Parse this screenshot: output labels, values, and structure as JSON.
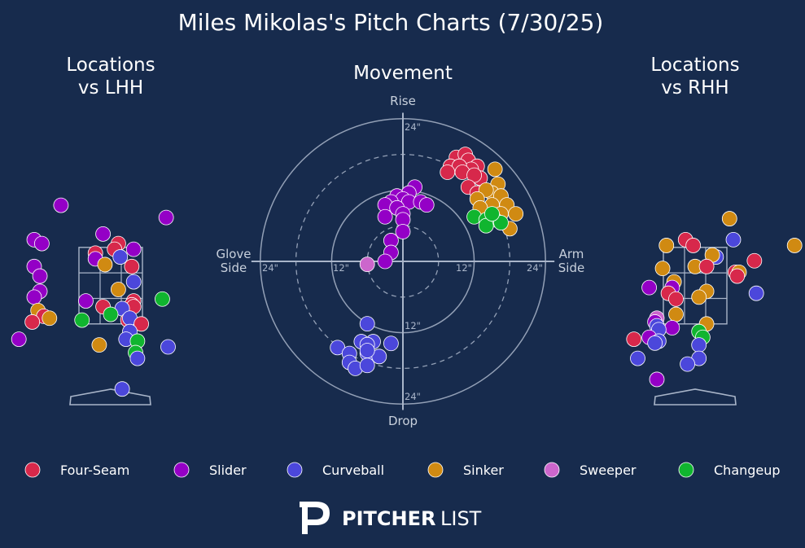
{
  "title": "Miles Mikolas's Pitch Charts (7/30/25)",
  "panels": {
    "lhh_title_line1": "Locations",
    "lhh_title_line2": "vs LHH",
    "movement_title": "Movement",
    "rhh_title_line1": "Locations",
    "rhh_title_line2": "vs RHH"
  },
  "movement_axis_labels": {
    "top": "Rise",
    "bottom": "Drop",
    "left_line1": "Glove",
    "left_line2": "Side",
    "right_line1": "Arm",
    "right_line2": "Side"
  },
  "ring_labels": {
    "top_outer": "24\"",
    "bottom_outer": "24\"",
    "left_outer": "24\"",
    "right_outer": "24\"",
    "left_inner": "12\"",
    "right_inner": "12\"",
    "bottom_inner": "12\""
  },
  "colors": {
    "background": "#172b4d",
    "grid": "#a9b5c9",
    "Four-Seam": "#d7284b",
    "Slider": "#9400c6",
    "Curveball": "#4b47db",
    "Sinker": "#d08a12",
    "Sweeper": "#cc66cc",
    "Changeup": "#10b52f"
  },
  "legend": [
    {
      "label": "Four-Seam",
      "color": "#d7284b"
    },
    {
      "label": "Slider",
      "color": "#9400c6"
    },
    {
      "label": "Curveball",
      "color": "#4b47db"
    },
    {
      "label": "Sinker",
      "color": "#d08a12"
    },
    {
      "label": "Sweeper",
      "color": "#cc66cc"
    },
    {
      "label": "Changeup",
      "color": "#10b52f"
    }
  ],
  "logo": {
    "brand_bold": "PITCHER",
    "brand_light": "LIST"
  },
  "chart_data": [
    {
      "type": "scatter",
      "name": "Locations vs LHH",
      "xlim": [
        -2.75,
        2.75
      ],
      "ylim": [
        -1.1,
        5.1
      ],
      "strike_zone": {
        "x": [
          -0.83,
          0.83
        ],
        "z": [
          1.5,
          3.5
        ]
      },
      "points": [
        {
          "x": -1.3,
          "z": 4.6,
          "pitch": "Slider"
        },
        {
          "x": 1.45,
          "z": 4.28,
          "pitch": "Slider"
        },
        {
          "x": -2.0,
          "z": 3.7,
          "pitch": "Slider"
        },
        {
          "x": -1.8,
          "z": 3.6,
          "pitch": "Slider"
        },
        {
          "x": -0.2,
          "z": 3.85,
          "pitch": "Slider"
        },
        {
          "x": 0.2,
          "z": 3.6,
          "pitch": "Four-Seam"
        },
        {
          "x": 0.1,
          "z": 3.45,
          "pitch": "Four-Seam"
        },
        {
          "x": 0.6,
          "z": 3.45,
          "pitch": "Slider"
        },
        {
          "x": -0.4,
          "z": 3.35,
          "pitch": "Four-Seam"
        },
        {
          "x": -0.4,
          "z": 3.2,
          "pitch": "Slider"
        },
        {
          "x": -0.15,
          "z": 3.05,
          "pitch": "Sinker"
        },
        {
          "x": 0.25,
          "z": 3.25,
          "pitch": "Curveball"
        },
        {
          "x": 0.55,
          "z": 3.0,
          "pitch": "Four-Seam"
        },
        {
          "x": -2.0,
          "z": 3.0,
          "pitch": "Slider"
        },
        {
          "x": -1.85,
          "z": 2.75,
          "pitch": "Slider"
        },
        {
          "x": 0.6,
          "z": 2.6,
          "pitch": "Curveball"
        },
        {
          "x": 0.2,
          "z": 2.4,
          "pitch": "Sinker"
        },
        {
          "x": -1.85,
          "z": 2.35,
          "pitch": "Slider"
        },
        {
          "x": -2.0,
          "z": 2.2,
          "pitch": "Slider"
        },
        {
          "x": -0.65,
          "z": 2.1,
          "pitch": "Slider"
        },
        {
          "x": 0.6,
          "z": 2.1,
          "pitch": "Four-Seam"
        },
        {
          "x": 0.55,
          "z": 2.0,
          "pitch": "Four-Seam"
        },
        {
          "x": 1.35,
          "z": 2.15,
          "pitch": "Changeup"
        },
        {
          "x": -0.2,
          "z": 1.95,
          "pitch": "Four-Seam"
        },
        {
          "x": 0.6,
          "z": 1.95,
          "pitch": "Four-Seam"
        },
        {
          "x": 0.3,
          "z": 1.9,
          "pitch": "Curveball"
        },
        {
          "x": -1.9,
          "z": 1.85,
          "pitch": "Sinker"
        },
        {
          "x": -1.75,
          "z": 1.7,
          "pitch": "Four-Seam"
        },
        {
          "x": -1.6,
          "z": 1.65,
          "pitch": "Sinker"
        },
        {
          "x": 0.0,
          "z": 1.75,
          "pitch": "Changeup"
        },
        {
          "x": 0.45,
          "z": 1.6,
          "pitch": "Four-Seam"
        },
        {
          "x": 0.5,
          "z": 1.65,
          "pitch": "Curveball"
        },
        {
          "x": -0.75,
          "z": 1.6,
          "pitch": "Changeup"
        },
        {
          "x": -2.05,
          "z": 1.55,
          "pitch": "Four-Seam"
        },
        {
          "x": 0.8,
          "z": 1.5,
          "pitch": "Four-Seam"
        },
        {
          "x": 0.5,
          "z": 1.3,
          "pitch": "Curveball"
        },
        {
          "x": -2.4,
          "z": 1.1,
          "pitch": "Slider"
        },
        {
          "x": 0.4,
          "z": 1.1,
          "pitch": "Curveball"
        },
        {
          "x": 0.7,
          "z": 1.05,
          "pitch": "Changeup"
        },
        {
          "x": -0.3,
          "z": 0.95,
          "pitch": "Sinker"
        },
        {
          "x": 1.5,
          "z": 0.9,
          "pitch": "Curveball"
        },
        {
          "x": 0.65,
          "z": 0.75,
          "pitch": "Changeup"
        },
        {
          "x": 0.7,
          "z": 0.6,
          "pitch": "Curveball"
        },
        {
          "x": 0.3,
          "z": -0.2,
          "pitch": "Curveball"
        }
      ]
    },
    {
      "type": "scatter",
      "name": "Movement",
      "xlim": [
        -28,
        28
      ],
      "ylim": [
        -28,
        28
      ],
      "rings": [
        6,
        12,
        18,
        24
      ],
      "points": [
        {
          "x": 9.0,
          "y": 17.5,
          "pitch": "Four-Seam"
        },
        {
          "x": 10.5,
          "y": 18.0,
          "pitch": "Four-Seam"
        },
        {
          "x": 11.0,
          "y": 17.0,
          "pitch": "Four-Seam"
        },
        {
          "x": 12.5,
          "y": 16.0,
          "pitch": "Four-Seam"
        },
        {
          "x": 13.0,
          "y": 14.0,
          "pitch": "Four-Seam"
        },
        {
          "x": 11.5,
          "y": 15.5,
          "pitch": "Four-Seam"
        },
        {
          "x": 8.0,
          "y": 16.0,
          "pitch": "Four-Seam"
        },
        {
          "x": 9.5,
          "y": 16.0,
          "pitch": "Four-Seam"
        },
        {
          "x": 10.0,
          "y": 15.0,
          "pitch": "Four-Seam"
        },
        {
          "x": 12.0,
          "y": 14.5,
          "pitch": "Four-Seam"
        },
        {
          "x": 7.5,
          "y": 15.0,
          "pitch": "Four-Seam"
        },
        {
          "x": 11.0,
          "y": 12.5,
          "pitch": "Four-Seam"
        },
        {
          "x": 12.5,
          "y": 11.5,
          "pitch": "Four-Seam"
        },
        {
          "x": 15.5,
          "y": 15.5,
          "pitch": "Sinker"
        },
        {
          "x": 16.0,
          "y": 13.0,
          "pitch": "Sinker"
        },
        {
          "x": 15.0,
          "y": 11.5,
          "pitch": "Sinker"
        },
        {
          "x": 14.0,
          "y": 12.0,
          "pitch": "Sinker"
        },
        {
          "x": 16.5,
          "y": 11.0,
          "pitch": "Sinker"
        },
        {
          "x": 15.0,
          "y": 9.5,
          "pitch": "Sinker"
        },
        {
          "x": 17.5,
          "y": 9.5,
          "pitch": "Sinker"
        },
        {
          "x": 19.0,
          "y": 8.0,
          "pitch": "Sinker"
        },
        {
          "x": 16.5,
          "y": 8.0,
          "pitch": "Sinker"
        },
        {
          "x": 18.0,
          "y": 5.5,
          "pitch": "Sinker"
        },
        {
          "x": 14.5,
          "y": 7.5,
          "pitch": "Sinker"
        },
        {
          "x": 12.5,
          "y": 10.5,
          "pitch": "Sinker"
        },
        {
          "x": 13.0,
          "y": 9.0,
          "pitch": "Sinker"
        },
        {
          "x": 12.0,
          "y": 7.5,
          "pitch": "Changeup"
        },
        {
          "x": 14.0,
          "y": 7.0,
          "pitch": "Changeup"
        },
        {
          "x": 15.5,
          "y": 7.0,
          "pitch": "Changeup"
        },
        {
          "x": 14.0,
          "y": 6.0,
          "pitch": "Changeup"
        },
        {
          "x": 16.5,
          "y": 6.5,
          "pitch": "Changeup"
        },
        {
          "x": 15.0,
          "y": 8.0,
          "pitch": "Changeup"
        },
        {
          "x": 2.0,
          "y": 12.5,
          "pitch": "Slider"
        },
        {
          "x": 1.0,
          "y": 11.5,
          "pitch": "Slider"
        },
        {
          "x": -1.0,
          "y": 11.0,
          "pitch": "Slider"
        },
        {
          "x": 0.0,
          "y": 10.5,
          "pitch": "Slider"
        },
        {
          "x": 1.0,
          "y": 10.0,
          "pitch": "Slider"
        },
        {
          "x": 3.0,
          "y": 10.0,
          "pitch": "Slider"
        },
        {
          "x": 4.0,
          "y": 9.5,
          "pitch": "Slider"
        },
        {
          "x": -2.0,
          "y": 10.0,
          "pitch": "Slider"
        },
        {
          "x": -3.0,
          "y": 9.5,
          "pitch": "Slider"
        },
        {
          "x": -1.0,
          "y": 9.0,
          "pitch": "Slider"
        },
        {
          "x": -3.0,
          "y": 7.5,
          "pitch": "Slider"
        },
        {
          "x": 0.0,
          "y": 8.0,
          "pitch": "Slider"
        },
        {
          "x": 0.0,
          "y": 7.0,
          "pitch": "Slider"
        },
        {
          "x": 0.0,
          "y": 5.0,
          "pitch": "Slider"
        },
        {
          "x": -2.0,
          "y": 3.5,
          "pitch": "Slider"
        },
        {
          "x": -2.0,
          "y": 1.5,
          "pitch": "Slider"
        },
        {
          "x": -3.0,
          "y": 0.0,
          "pitch": "Slider"
        },
        {
          "x": -6.0,
          "y": -0.5,
          "pitch": "Sweeper"
        },
        {
          "x": -6.0,
          "y": -10.5,
          "pitch": "Curveball"
        },
        {
          "x": -11.0,
          "y": -14.5,
          "pitch": "Curveball"
        },
        {
          "x": -7.0,
          "y": -13.5,
          "pitch": "Curveball"
        },
        {
          "x": -5.0,
          "y": -13.5,
          "pitch": "Curveball"
        },
        {
          "x": -2.0,
          "y": -13.8,
          "pitch": "Curveball"
        },
        {
          "x": -9.0,
          "y": -15.5,
          "pitch": "Curveball"
        },
        {
          "x": -6.0,
          "y": -15.5,
          "pitch": "Curveball"
        },
        {
          "x": -4.0,
          "y": -16.0,
          "pitch": "Curveball"
        },
        {
          "x": -6.0,
          "y": -14.0,
          "pitch": "Curveball"
        },
        {
          "x": -9.0,
          "y": -17.0,
          "pitch": "Curveball"
        },
        {
          "x": -8.0,
          "y": -18.0,
          "pitch": "Curveball"
        },
        {
          "x": -6.0,
          "y": -17.5,
          "pitch": "Curveball"
        },
        {
          "x": -6.0,
          "y": -15.0,
          "pitch": "Curveball"
        }
      ]
    },
    {
      "type": "scatter",
      "name": "Locations vs RHH",
      "xlim": [
        -2.75,
        2.75
      ],
      "ylim": [
        -1.1,
        5.1
      ],
      "strike_zone": {
        "x": [
          -0.83,
          0.83
        ],
        "z": [
          1.5,
          3.5
        ]
      },
      "points": [
        {
          "x": 0.9,
          "z": 4.25,
          "pitch": "Sinker"
        },
        {
          "x": 1.0,
          "z": 3.7,
          "pitch": "Curveball"
        },
        {
          "x": -0.25,
          "z": 3.7,
          "pitch": "Four-Seam"
        },
        {
          "x": -0.05,
          "z": 3.55,
          "pitch": "Four-Seam"
        },
        {
          "x": -0.75,
          "z": 3.55,
          "pitch": "Sinker"
        },
        {
          "x": 0.55,
          "z": 3.25,
          "pitch": "Curveball"
        },
        {
          "x": 0.45,
          "z": 3.3,
          "pitch": "Sinker"
        },
        {
          "x": 1.55,
          "z": 3.15,
          "pitch": "Four-Seam"
        },
        {
          "x": 0.0,
          "z": 3.0,
          "pitch": "Sinker"
        },
        {
          "x": 0.3,
          "z": 3.0,
          "pitch": "Four-Seam"
        },
        {
          "x": -0.85,
          "z": 2.95,
          "pitch": "Sinker"
        },
        {
          "x": 1.05,
          "z": 2.85,
          "pitch": "Four-Seam"
        },
        {
          "x": 1.15,
          "z": 2.85,
          "pitch": "Sinker"
        },
        {
          "x": 1.1,
          "z": 2.75,
          "pitch": "Four-Seam"
        },
        {
          "x": 2.6,
          "z": 3.55,
          "pitch": "Sinker"
        },
        {
          "x": -0.55,
          "z": 2.6,
          "pitch": "Sinker"
        },
        {
          "x": -1.2,
          "z": 2.45,
          "pitch": "Slider"
        },
        {
          "x": -0.6,
          "z": 2.45,
          "pitch": "Slider"
        },
        {
          "x": -0.7,
          "z": 2.3,
          "pitch": "Four-Seam"
        },
        {
          "x": 0.3,
          "z": 2.35,
          "pitch": "Sinker"
        },
        {
          "x": 0.1,
          "z": 2.2,
          "pitch": "Sinker"
        },
        {
          "x": 1.6,
          "z": 2.3,
          "pitch": "Curveball"
        },
        {
          "x": -0.5,
          "z": 2.15,
          "pitch": "Four-Seam"
        },
        {
          "x": -0.5,
          "z": 1.75,
          "pitch": "Sinker"
        },
        {
          "x": -1.0,
          "z": 1.65,
          "pitch": "Sweeper"
        },
        {
          "x": -1.05,
          "z": 1.55,
          "pitch": "Slider"
        },
        {
          "x": -1.0,
          "z": 1.45,
          "pitch": "Curveball"
        },
        {
          "x": -0.6,
          "z": 1.4,
          "pitch": "Slider"
        },
        {
          "x": 0.3,
          "z": 1.5,
          "pitch": "Sinker"
        },
        {
          "x": -0.95,
          "z": 1.35,
          "pitch": "Curveball"
        },
        {
          "x": 0.1,
          "z": 1.3,
          "pitch": "Changeup"
        },
        {
          "x": -1.2,
          "z": 1.15,
          "pitch": "Slider"
        },
        {
          "x": -1.6,
          "z": 1.1,
          "pitch": "Four-Seam"
        },
        {
          "x": -0.95,
          "z": 1.05,
          "pitch": "Curveball"
        },
        {
          "x": -1.05,
          "z": 1.0,
          "pitch": "Curveball"
        },
        {
          "x": 0.2,
          "z": 1.15,
          "pitch": "Changeup"
        },
        {
          "x": 0.1,
          "z": 0.95,
          "pitch": "Curveball"
        },
        {
          "x": -1.5,
          "z": 0.6,
          "pitch": "Curveball"
        },
        {
          "x": 0.1,
          "z": 0.6,
          "pitch": "Curveball"
        },
        {
          "x": -0.2,
          "z": 0.45,
          "pitch": "Curveball"
        },
        {
          "x": -1.0,
          "z": 0.05,
          "pitch": "Slider"
        }
      ]
    }
  ]
}
